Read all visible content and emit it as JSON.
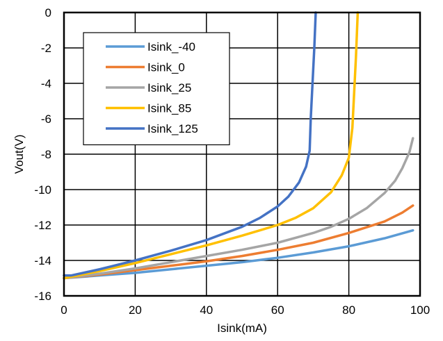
{
  "chart_data": {
    "type": "line",
    "title": "",
    "xlabel": "Isink(mA)",
    "ylabel": "Vout(V)",
    "xlim": [
      0,
      100
    ],
    "ylim": [
      -16,
      0
    ],
    "xticks": [
      0,
      20,
      40,
      60,
      80,
      100
    ],
    "yticks": [
      0,
      -2,
      -4,
      -6,
      -8,
      -10,
      -12,
      -14,
      -16
    ],
    "grid": true,
    "legend_position": "top-left",
    "series": [
      {
        "name": "Isink_-40",
        "color": "#5B9BD5",
        "x": [
          0,
          10,
          20,
          30,
          40,
          50,
          60,
          70,
          80,
          90,
          98
        ],
        "y": [
          -15.0,
          -14.85,
          -14.7,
          -14.5,
          -14.3,
          -14.1,
          -13.85,
          -13.55,
          -13.2,
          -12.75,
          -12.3
        ]
      },
      {
        "name": "Isink_0",
        "color": "#ED7D31",
        "x": [
          0,
          10,
          20,
          30,
          40,
          50,
          60,
          70,
          80,
          90,
          95,
          98
        ],
        "y": [
          -15.0,
          -14.8,
          -14.55,
          -14.3,
          -14.05,
          -13.75,
          -13.4,
          -13.0,
          -12.45,
          -11.8,
          -11.3,
          -10.9
        ]
      },
      {
        "name": "Isink_25",
        "color": "#A5A5A5",
        "x": [
          0,
          10,
          20,
          30,
          40,
          50,
          60,
          70,
          75,
          80,
          85,
          90,
          93,
          95,
          97,
          98
        ],
        "y": [
          -15.0,
          -14.75,
          -14.45,
          -14.1,
          -13.75,
          -13.4,
          -13.0,
          -12.45,
          -12.1,
          -11.65,
          -11.05,
          -10.2,
          -9.5,
          -8.8,
          -7.9,
          -7.1
        ]
      },
      {
        "name": "Isink_85",
        "color": "#FFC000",
        "x": [
          0,
          10,
          20,
          30,
          40,
          50,
          60,
          65,
          70,
          75,
          78,
          80,
          81,
          81.5,
          82,
          82.3,
          82.5
        ],
        "y": [
          -15.0,
          -14.6,
          -14.15,
          -13.65,
          -13.15,
          -12.6,
          -12.0,
          -11.6,
          -11.05,
          -10.15,
          -9.2,
          -8.2,
          -6.5,
          -4.5,
          -2.5,
          -1.0,
          0.0
        ]
      },
      {
        "name": "Isink_125",
        "color": "#4472C4",
        "x": [
          0,
          2,
          10,
          20,
          30,
          40,
          50,
          55,
          60,
          63,
          66,
          68,
          69,
          69.3,
          69.8,
          70.3,
          70.7
        ],
        "y": [
          -14.85,
          -14.85,
          -14.5,
          -14.0,
          -13.45,
          -12.85,
          -12.1,
          -11.6,
          -10.95,
          -10.4,
          -9.6,
          -8.7,
          -7.8,
          -6.0,
          -4.0,
          -2.0,
          0.0
        ]
      }
    ]
  }
}
